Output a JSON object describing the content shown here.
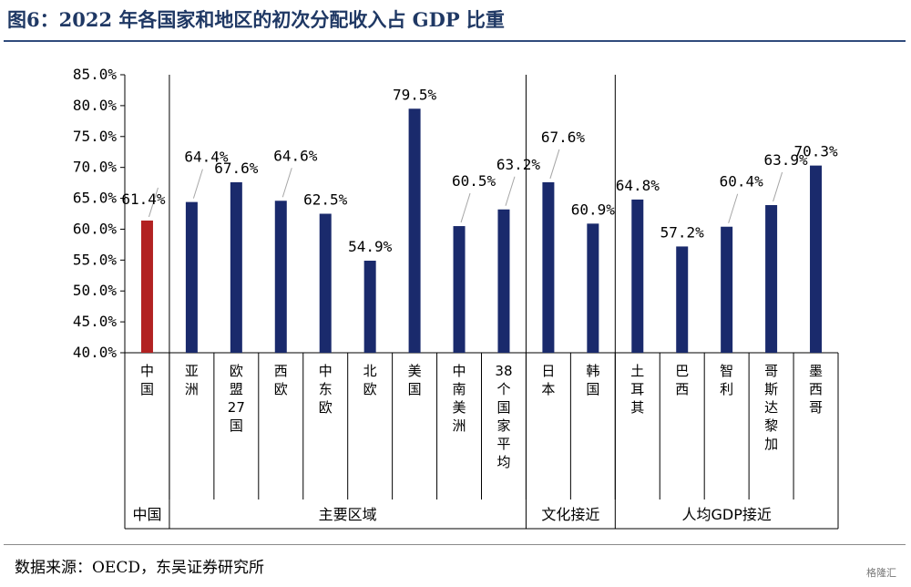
{
  "figure": {
    "title": "图6：2022 年各国家和地区的初次分配收入占 GDP 比重",
    "source": "数据来源：OECD，东吴证券研究所",
    "watermark": "格隆汇"
  },
  "chart_data": {
    "type": "bar",
    "ylim": [
      0.4,
      0.85
    ],
    "yticks": [
      "40.0%",
      "45.0%",
      "50.0%",
      "55.0%",
      "60.0%",
      "65.0%",
      "70.0%",
      "75.0%",
      "80.0%",
      "85.0%"
    ],
    "grid": false,
    "categories": [
      "中国",
      "亚洲",
      "欧盟27国",
      "西欧",
      "中东欧",
      "北欧",
      "美国",
      "中南美洲",
      "38个国家平均",
      "日本",
      "韩国",
      "土耳其",
      "巴西",
      "智利",
      "哥斯达黎加",
      "墨西哥"
    ],
    "values": [
      0.614,
      0.644,
      0.676,
      0.646,
      0.625,
      0.549,
      0.795,
      0.605,
      0.632,
      0.676,
      0.609,
      0.648,
      0.572,
      0.604,
      0.639,
      0.703
    ],
    "value_labels": [
      "61.4%",
      "64.4%",
      "67.6%",
      "64.6%",
      "62.5%",
      "54.9%",
      "79.5%",
      "60.5%",
      "63.2%",
      "67.6%",
      "60.9%",
      "64.8%",
      "57.2%",
      "60.4%",
      "63.9%",
      "70.3%"
    ],
    "groups": [
      {
        "label": "中国",
        "categories": [
          "中国"
        ]
      },
      {
        "label": "主要区域",
        "categories": [
          "亚洲",
          "欧盟27国",
          "西欧",
          "中东欧",
          "北欧",
          "美国",
          "中南美洲",
          "38个国家平均"
        ]
      },
      {
        "label": "文化接近",
        "categories": [
          "日本",
          "韩国"
        ]
      },
      {
        "label": "人均GDP接近",
        "categories": [
          "土耳其",
          "巴西",
          "智利",
          "哥斯达黎加",
          "墨西哥"
        ]
      }
    ],
    "colors": {
      "highlight": "#b22222",
      "default": "#1a2a6c",
      "axis": "#000000",
      "leader": "#a6a6a6"
    },
    "highlight_index": 0
  }
}
